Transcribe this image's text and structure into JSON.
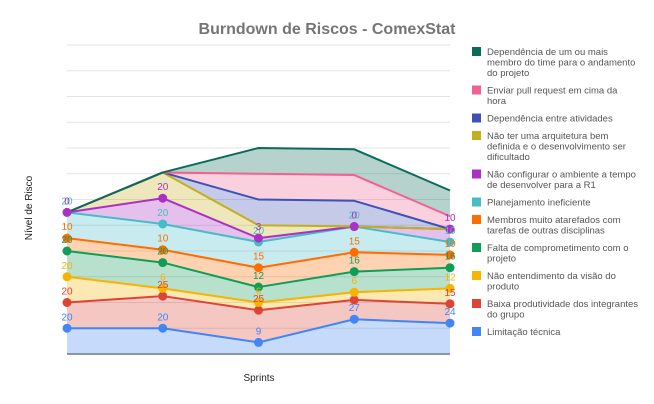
{
  "chart_data": {
    "type": "area",
    "stacked": true,
    "title": "Burndown de Riscos - ComexStat",
    "xlabel": "Sprints",
    "ylabel": "Nível de Risco",
    "categories": [
      "",
      "",
      "",
      "",
      ""
    ],
    "ylim": [
      0,
      240
    ],
    "grid": true,
    "legend_position": "right",
    "series": [
      {
        "name": "Limitação técnica",
        "color": "#4285f4",
        "values": [
          20,
          20,
          9,
          27,
          24
        ]
      },
      {
        "name": "Baixa produtividade dos integrantes do grupo",
        "color": "#db4437",
        "values": [
          20,
          25,
          25,
          15,
          15
        ]
      },
      {
        "name": "Não entendimento da visão do produto",
        "color": "#f4b400",
        "values": [
          20,
          6,
          6,
          6,
          12
        ]
      },
      {
        "name": "Falta de comprometimento com o projeto",
        "color": "#0f9d58",
        "values": [
          20,
          20,
          12,
          16,
          16
        ]
      },
      {
        "name": "Membros muito atarefados com tarefas de outras disciplinas",
        "color": "#ff6d00",
        "values": [
          10,
          10,
          15,
          15,
          10
        ]
      },
      {
        "name": "Planejamento ineficiente",
        "color": "#46bdc6",
        "values": [
          20,
          20,
          20,
          20,
          10
        ]
      },
      {
        "name": "Não configurar o ambiente a tempo de desenvolver para a R1",
        "color": "#ab30c4",
        "values": [
          0,
          20,
          3,
          0,
          10
        ]
      },
      {
        "name": "Não ter uma arquitetura bem definida e o desenvolvimento ser dificultado",
        "color": "#c2b01f",
        "values": [
          0,
          20,
          10,
          0,
          0
        ]
      },
      {
        "name": "Dependência entre atividades",
        "color": "#3f51b5",
        "values": [
          0,
          0,
          20,
          20,
          0
        ]
      },
      {
        "name": "Enviar pull request em cima da hora",
        "color": "#f06292",
        "values": [
          0,
          0,
          20,
          20,
          10
        ]
      },
      {
        "name": "Dependência de um ou mais membro do time para o andamento do projeto",
        "color": "#0b6b5a",
        "values": [
          0,
          0,
          20,
          20,
          20
        ]
      }
    ],
    "data_labels": [
      {
        "series": 0,
        "text": [
          "20",
          "20",
          "9",
          "27",
          "24"
        ]
      },
      {
        "series": 1,
        "text": [
          "20",
          "25",
          "25",
          "",
          "15"
        ]
      },
      {
        "series": 2,
        "text": [
          "20",
          "6",
          "6",
          "6",
          "12"
        ]
      },
      {
        "series": 3,
        "text": [
          "20",
          "20",
          "12",
          "16",
          "16"
        ]
      },
      {
        "series": 4,
        "text": [
          "10",
          "10",
          "15",
          "15",
          "10"
        ]
      },
      {
        "series": 5,
        "text": [
          "20",
          "20",
          "20",
          "20",
          "10"
        ]
      },
      {
        "series": 6,
        "text": [
          "0",
          "20",
          "3",
          "0",
          "10"
        ]
      }
    ]
  }
}
